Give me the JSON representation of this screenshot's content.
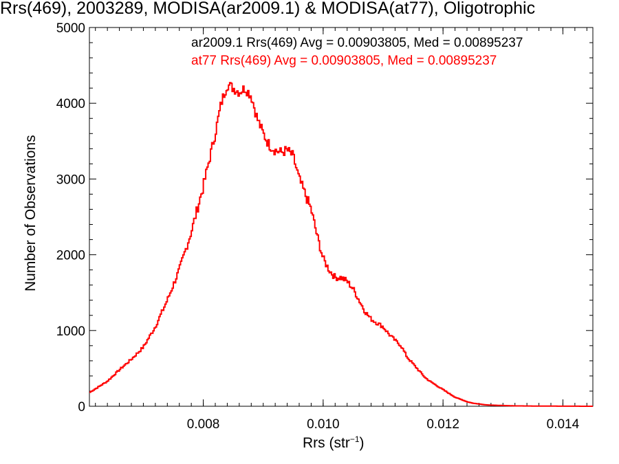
{
  "chart_data": {
    "type": "histogram",
    "title": "Rrs(469), 2003289, MODISA(ar2009.1) & MODISA(at77), Oligotrophic",
    "xlabel_main": "Rrs (str",
    "xlabel_sup": "−1",
    "xlabel_end": ")",
    "ylabel": "Number of Observations",
    "xlim": [
      0.0061,
      0.0145
    ],
    "ylim": [
      0,
      5000
    ],
    "xticks": [
      0.008,
      0.01,
      0.012,
      0.014
    ],
    "xtick_labels": [
      "0.008",
      "0.010",
      "0.012",
      "0.014"
    ],
    "yticks": [
      0,
      1000,
      2000,
      3000,
      4000,
      5000
    ],
    "ytick_labels": [
      "0",
      "1000",
      "2000",
      "3000",
      "4000",
      "5000"
    ],
    "legend": [
      {
        "text": "ar2009.1 Rrs(469) Avg = 0.00903805, Med = 0.00895237",
        "color": "#000000"
      },
      {
        "text": "at77 Rrs(469) Avg = 0.00903805, Med = 0.00895237",
        "color": "#ff0000"
      }
    ],
    "series": [
      {
        "name": "at77",
        "color": "#ff0000",
        "x": [
          0.0061,
          0.0064,
          0.0066,
          0.0068,
          0.007,
          0.0072,
          0.0074,
          0.0076,
          0.0078,
          0.008,
          0.0082,
          0.0083,
          0.0084,
          0.0085,
          0.0086,
          0.0087,
          0.0088,
          0.0089,
          0.009,
          0.0091,
          0.0092,
          0.0093,
          0.0094,
          0.0095,
          0.0096,
          0.0097,
          0.0098,
          0.0099,
          0.01,
          0.0101,
          0.0102,
          0.0103,
          0.0104,
          0.0105,
          0.0106,
          0.0107,
          0.0108,
          0.0109,
          0.011,
          0.0111,
          0.0112,
          0.0113,
          0.0114,
          0.0115,
          0.0116,
          0.0117,
          0.0118,
          0.0119,
          0.012,
          0.0121,
          0.0122,
          0.0123,
          0.0124,
          0.0125,
          0.0126,
          0.0127,
          0.0128,
          0.013,
          0.0132,
          0.0135,
          0.014,
          0.0145
        ],
        "y": [
          180,
          330,
          480,
          620,
          780,
          1050,
          1400,
          1800,
          2300,
          2900,
          3600,
          4000,
          4250,
          4200,
          4150,
          4200,
          4100,
          3800,
          3600,
          3450,
          3380,
          3350,
          3380,
          3300,
          3000,
          2800,
          2600,
          2250,
          1950,
          1800,
          1700,
          1700,
          1650,
          1550,
          1400,
          1250,
          1150,
          1100,
          1050,
          950,
          870,
          800,
          650,
          560,
          470,
          380,
          320,
          270,
          220,
          170,
          120,
          90,
          60,
          40,
          30,
          20,
          15,
          10,
          5,
          3,
          1,
          0
        ]
      }
    ]
  }
}
